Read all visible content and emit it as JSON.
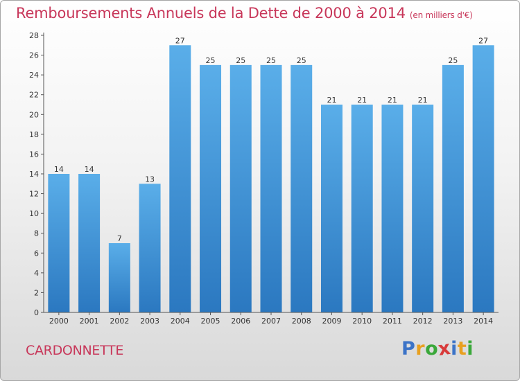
{
  "chart_data": {
    "type": "bar",
    "title": "Remboursements Annuels de la Dette de 2000 à 2014",
    "unit_note": "(en milliers d'€)",
    "categories": [
      "2000",
      "2001",
      "2002",
      "2003",
      "2004",
      "2005",
      "2006",
      "2007",
      "2008",
      "2009",
      "2010",
      "2011",
      "2012",
      "2013",
      "2014"
    ],
    "values": [
      14,
      14,
      7,
      13,
      27,
      25,
      25,
      25,
      25,
      21,
      21,
      21,
      21,
      25,
      27
    ],
    "ylim": [
      0,
      28
    ],
    "yticks": [
      0,
      2,
      4,
      6,
      8,
      10,
      12,
      14,
      16,
      18,
      20,
      22,
      24,
      26,
      28
    ],
    "grid": false,
    "bar_color": "#3f95d9"
  },
  "footer": {
    "town": "CARDONNETTE",
    "logo_letters": [
      {
        "ch": "P",
        "color": "#3b73c7"
      },
      {
        "ch": "r",
        "color": "#e8a020"
      },
      {
        "ch": "o",
        "color": "#3aa83a"
      },
      {
        "ch": "x",
        "color": "#d83a3a"
      },
      {
        "ch": "i",
        "color": "#3b73c7"
      },
      {
        "ch": "t",
        "color": "#e8a020"
      },
      {
        "ch": "i",
        "color": "#3aa83a"
      }
    ]
  },
  "colors": {
    "title": "#c8375a",
    "axis": "#555555"
  }
}
